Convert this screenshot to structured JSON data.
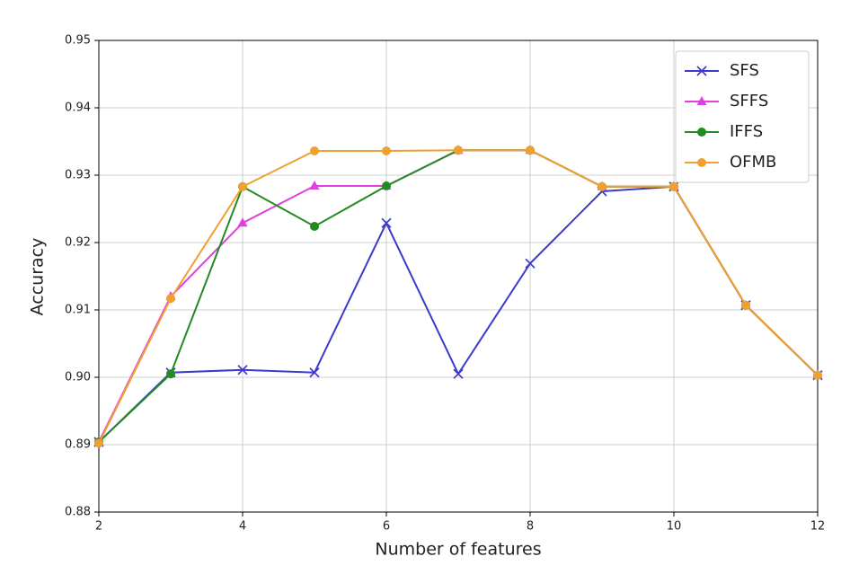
{
  "chart_data": {
    "type": "line",
    "xlabel": "Number of features",
    "ylabel": "Accuracy",
    "x": [
      2,
      3,
      4,
      5,
      6,
      7,
      8,
      9,
      10,
      11,
      12
    ],
    "series": [
      {
        "name": "SFS",
        "color": "#3a3acc",
        "marker": "x",
        "values": [
          0.8904,
          0.9007,
          0.9011,
          0.9007,
          0.9229,
          0.9005,
          0.9169,
          0.9276,
          0.9283,
          0.9107,
          0.9003
        ]
      },
      {
        "name": "SFFS",
        "color": "#e040e0",
        "marker": "triangle",
        "values": [
          0.8904,
          0.912,
          0.9229,
          0.9284,
          0.9284,
          0.9337,
          0.9337,
          0.9283,
          0.9283,
          0.9107,
          0.9003
        ]
      },
      {
        "name": "IFFS",
        "color": "#228b22",
        "marker": "circle",
        "values": [
          0.8904,
          0.9005,
          0.9283,
          0.9224,
          0.9284,
          0.9337,
          0.9337,
          0.9283,
          0.9283,
          0.9107,
          0.9003
        ]
      },
      {
        "name": "OFMB",
        "color": "#f0a030",
        "marker": "circle",
        "values": [
          0.8902,
          0.9117,
          0.9283,
          0.9336,
          0.9336,
          0.9337,
          0.9337,
          0.9283,
          0.9283,
          0.9107,
          0.9003
        ]
      }
    ],
    "xlim": [
      2,
      12
    ],
    "xticks": [
      2,
      4,
      6,
      8,
      10,
      12
    ],
    "ylim": [
      0.88,
      0.95
    ],
    "yticks": [
      0.88,
      0.89,
      {
        "value": 0.9,
        "label": "0.90"
      },
      0.91,
      0.92,
      0.93,
      0.94,
      0.95
    ],
    "grid": true,
    "legend": "upper right"
  }
}
